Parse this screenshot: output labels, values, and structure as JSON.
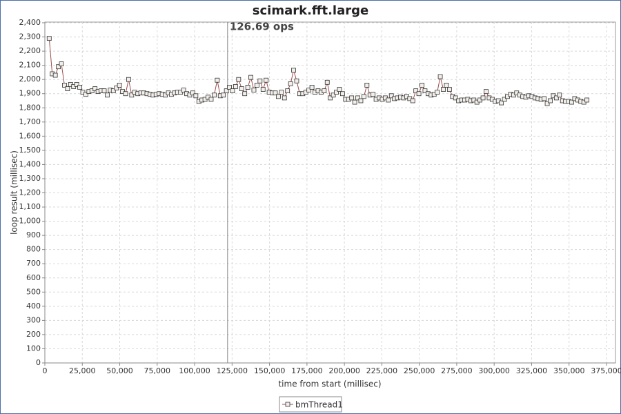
{
  "chart_data": {
    "type": "line",
    "title": "scimark.fft.large",
    "xlabel": "time from start (millisec)",
    "ylabel": "loop result (millisec)",
    "x": [
      2900,
      4940,
      6980,
      9020,
      11060,
      13100,
      15140,
      17180,
      19220,
      21260,
      23300,
      25340,
      27380,
      29420,
      31460,
      33500,
      35540,
      37580,
      39620,
      41660,
      43700,
      45740,
      47780,
      49820,
      51860,
      53900,
      55940,
      57980,
      60020,
      62060,
      64100,
      66140,
      68180,
      70220,
      72260,
      74300,
      76340,
      78380,
      80420,
      82460,
      84500,
      86540,
      88580,
      90620,
      92660,
      94700,
      96740,
      98780,
      100820,
      102860,
      104900,
      106940,
      108980,
      111020,
      113060,
      115100,
      117140,
      119180,
      121220,
      123260,
      125300,
      127340,
      129380,
      131420,
      133460,
      135500,
      137540,
      139580,
      141620,
      143660,
      145700,
      147740,
      149780,
      151820,
      153860,
      155900,
      157940,
      159980,
      162020,
      164060,
      166100,
      168140,
      170180,
      172220,
      174260,
      176300,
      178340,
      180380,
      182420,
      184460,
      186500,
      188540,
      190580,
      192620,
      194660,
      196700,
      198740,
      200780,
      202820,
      204860,
      206900,
      208940,
      210980,
      213020,
      215060,
      217100,
      219140,
      221180,
      223220,
      225260,
      227300,
      229340,
      231380,
      233420,
      235460,
      237500,
      239540,
      241580,
      243620,
      245660,
      247700,
      249740,
      251780,
      253820,
      255860,
      257900,
      259940,
      261980,
      264020,
      266060,
      268100,
      270140,
      272180,
      274220,
      276260,
      278300,
      280340,
      282380,
      284420,
      286460,
      288500,
      290540,
      292580,
      294620,
      296660,
      298700,
      300740,
      302780,
      304820,
      306860,
      308900,
      310940,
      312980,
      315020,
      317060,
      319100,
      321140,
      323180,
      325220,
      327260,
      329300,
      331340,
      333380,
      335420,
      337460,
      339500,
      341540,
      343580,
      345620,
      347660,
      349700,
      351740,
      353780,
      355820,
      357860,
      359900,
      361940
    ],
    "series": [
      {
        "name": "bmThread1",
        "color": "#9c4a4a",
        "values": [
          2290,
          2040,
          2030,
          2090,
          2110,
          1960,
          1935,
          1965,
          1950,
          1965,
          1945,
          1910,
          1895,
          1915,
          1920,
          1935,
          1915,
          1920,
          1920,
          1890,
          1925,
          1920,
          1940,
          1960,
          1915,
          1900,
          2000,
          1890,
          1910,
          1900,
          1905,
          1905,
          1900,
          1895,
          1890,
          1895,
          1900,
          1895,
          1890,
          1905,
          1895,
          1905,
          1910,
          1910,
          1925,
          1900,
          1890,
          1905,
          1885,
          1845,
          1855,
          1860,
          1875,
          1860,
          1890,
          1995,
          1885,
          1890,
          1920,
          1945,
          1920,
          1950,
          2000,
          1935,
          1900,
          1945,
          2015,
          1925,
          1960,
          1990,
          1930,
          1995,
          1910,
          1905,
          1905,
          1880,
          1910,
          1870,
          1920,
          1970,
          2065,
          1990,
          1900,
          1900,
          1910,
          1925,
          1945,
          1910,
          1920,
          1910,
          1920,
          1980,
          1870,
          1890,
          1910,
          1930,
          1900,
          1860,
          1860,
          1870,
          1840,
          1870,
          1850,
          1880,
          1960,
          1890,
          1895,
          1860,
          1870,
          1860,
          1870,
          1855,
          1885,
          1865,
          1870,
          1875,
          1870,
          1880,
          1865,
          1850,
          1920,
          1900,
          1960,
          1920,
          1900,
          1890,
          1895,
          1910,
          2020,
          1930,
          1960,
          1930,
          1880,
          1870,
          1850,
          1855,
          1855,
          1860,
          1850,
          1855,
          1840,
          1855,
          1870,
          1915,
          1870,
          1860,
          1845,
          1850,
          1835,
          1860,
          1880,
          1895,
          1890,
          1905,
          1890,
          1880,
          1875,
          1885,
          1880,
          1870,
          1865,
          1860,
          1865,
          1830,
          1850,
          1885,
          1870,
          1890,
          1850,
          1845,
          1845,
          1840,
          1865,
          1855,
          1845,
          1840,
          1855
        ]
      }
    ],
    "annotation": {
      "text": "126.69 ops",
      "x": 122000
    },
    "xlim": [
      0,
      381000
    ],
    "ylim": [
      0,
      2405
    ],
    "xticks": [
      0,
      {
        "value": 25000,
        "label": "25,000"
      },
      {
        "value": 50000,
        "label": "50,000"
      },
      {
        "value": 75000,
        "label": "75,000"
      },
      {
        "value": 100000,
        "label": "100,000"
      },
      {
        "value": 125000,
        "label": "125,000"
      },
      {
        "value": 150000,
        "label": "150,000"
      },
      {
        "value": 175000,
        "label": "175,000"
      },
      {
        "value": 200000,
        "label": "200,000"
      },
      {
        "value": 225000,
        "label": "225,000"
      },
      {
        "value": 250000,
        "label": "250,000"
      },
      {
        "value": 275000,
        "label": "275,000"
      },
      {
        "value": 300000,
        "label": "300,000"
      },
      {
        "value": 325000,
        "label": "325,000"
      },
      {
        "value": 350000,
        "label": "350,000"
      },
      {
        "value": 375000,
        "label": "375,000"
      }
    ],
    "yticks": [
      0,
      100,
      200,
      300,
      400,
      500,
      600,
      700,
      800,
      900,
      {
        "value": 1000,
        "label": "1,000"
      },
      {
        "value": 1100,
        "label": "1,100"
      },
      {
        "value": 1200,
        "label": "1,200"
      },
      {
        "value": 1300,
        "label": "1,300"
      },
      {
        "value": 1400,
        "label": "1,400"
      },
      {
        "value": 1500,
        "label": "1,500"
      },
      {
        "value": 1600,
        "label": "1,600"
      },
      {
        "value": 1700,
        "label": "1,700"
      },
      {
        "value": 1800,
        "label": "1,800"
      },
      {
        "value": 1900,
        "label": "1,900"
      },
      {
        "value": 2000,
        "label": "2,000"
      },
      {
        "value": 2100,
        "label": "2,100"
      },
      {
        "value": 2200,
        "label": "2,200"
      },
      {
        "value": 2300,
        "label": "2,300"
      },
      {
        "value": 2400,
        "label": "2,400"
      }
    ],
    "grid": true,
    "legend": "bottom"
  }
}
